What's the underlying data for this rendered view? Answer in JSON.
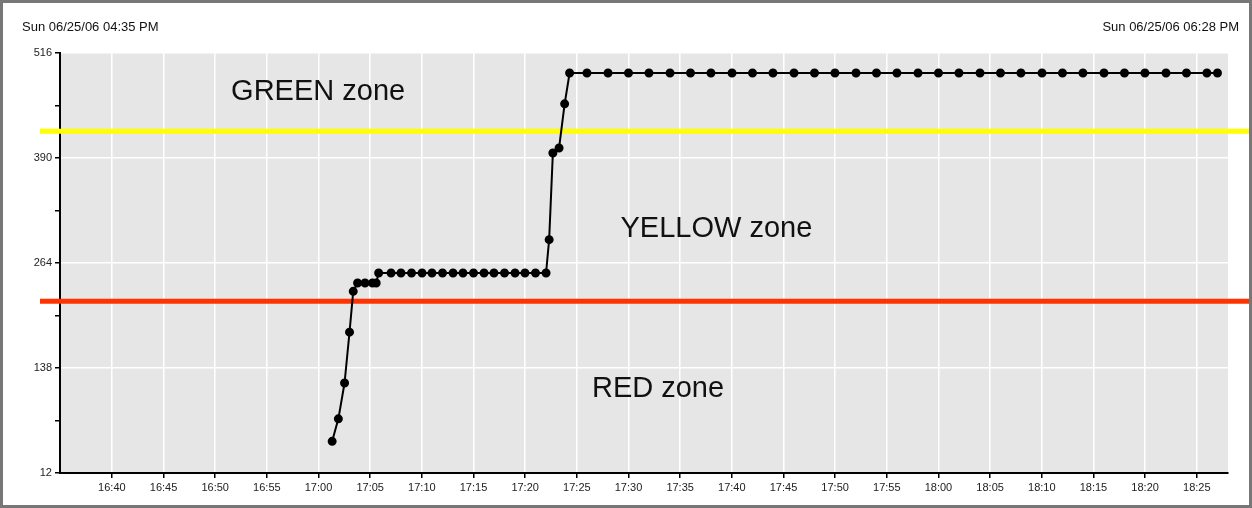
{
  "chart_data": {
    "type": "line",
    "annotations": [
      "Sun 06/25/06 04:35 PM",
      "Sun 06/25/06 06:28 PM",
      "GREEN zone",
      "YELLOW zone",
      "RED zone"
    ],
    "series": [
      {
        "color": "#000000",
        "x": [
          17.022,
          17.032,
          17.042,
          17.05,
          17.056,
          17.063,
          17.075,
          17.087,
          17.093,
          17.097,
          17.117,
          17.133,
          17.15,
          17.167,
          17.183,
          17.2,
          17.217,
          17.233,
          17.25,
          17.267,
          17.283,
          17.3,
          17.317,
          17.333,
          17.35,
          17.367,
          17.372,
          17.378,
          17.388,
          17.397,
          17.405,
          17.433,
          17.467,
          17.5,
          17.533,
          17.567,
          17.6,
          17.633,
          17.667,
          17.7,
          17.733,
          17.767,
          17.8,
          17.833,
          17.867,
          17.9,
          17.933,
          17.967,
          18,
          18.033,
          18.067,
          18.1,
          18.133,
          18.167,
          18.2,
          18.233,
          18.267,
          18.3,
          18.333,
          18.367,
          18.4,
          18.433,
          18.45
        ],
        "values": [
          50,
          77,
          120,
          181,
          230,
          240,
          240,
          240,
          240,
          252,
          252,
          252,
          252,
          252,
          252,
          252,
          252,
          252,
          252,
          252,
          252,
          252,
          252,
          252,
          252,
          252,
          292,
          396,
          402,
          455,
          492,
          492,
          492,
          492,
          492,
          492,
          492,
          492,
          492,
          492,
          492,
          492,
          492,
          492,
          492,
          492,
          492,
          492,
          492,
          492,
          492,
          492,
          492,
          492,
          492,
          492,
          492,
          492,
          492,
          492,
          492,
          492,
          492
        ]
      }
    ],
    "xlim": [
      16.583,
      18.467
    ],
    "xticks": [
      {
        "value": 16.6667,
        "label": "16:40"
      },
      {
        "value": 16.75,
        "label": "16:45"
      },
      {
        "value": 16.8333,
        "label": "16:50"
      },
      {
        "value": 16.9167,
        "label": "16:55"
      },
      {
        "value": 17,
        "label": "17:00"
      },
      {
        "value": 17.0833,
        "label": "17:05"
      },
      {
        "value": 17.1667,
        "label": "17:10"
      },
      {
        "value": 17.25,
        "label": "17:15"
      },
      {
        "value": 17.3333,
        "label": "17:20"
      },
      {
        "value": 17.4167,
        "label": "17:25"
      },
      {
        "value": 17.5,
        "label": "17:30"
      },
      {
        "value": 17.5833,
        "label": "17:35"
      },
      {
        "value": 17.6667,
        "label": "17:40"
      },
      {
        "value": 17.75,
        "label": "17:45"
      },
      {
        "value": 17.8333,
        "label": "17:50"
      },
      {
        "value": 17.9167,
        "label": "17:55"
      },
      {
        "value": 18,
        "label": "18:00"
      },
      {
        "value": 18.0833,
        "label": "18:05"
      },
      {
        "value": 18.1667,
        "label": "18:10"
      },
      {
        "value": 18.25,
        "label": "18:15"
      },
      {
        "value": 18.3333,
        "label": "18:20"
      },
      {
        "value": 18.4167,
        "label": "18:25"
      }
    ],
    "ylim": [
      12,
      516
    ],
    "yticks": [
      12,
      {
        "value": 75,
        "label": null
      },
      138,
      {
        "value": 201,
        "label": null
      },
      264,
      {
        "value": 327,
        "label": null
      },
      390,
      {
        "value": 453,
        "label": null
      },
      516
    ],
    "ref_lines": [
      {
        "axis": "y",
        "value": 422,
        "color": "#ffff00"
      },
      {
        "axis": "y",
        "value": 218,
        "color": "#ff3300"
      }
    ],
    "grid": true,
    "legend": false,
    "marker": "circle",
    "line_style": "solid"
  }
}
